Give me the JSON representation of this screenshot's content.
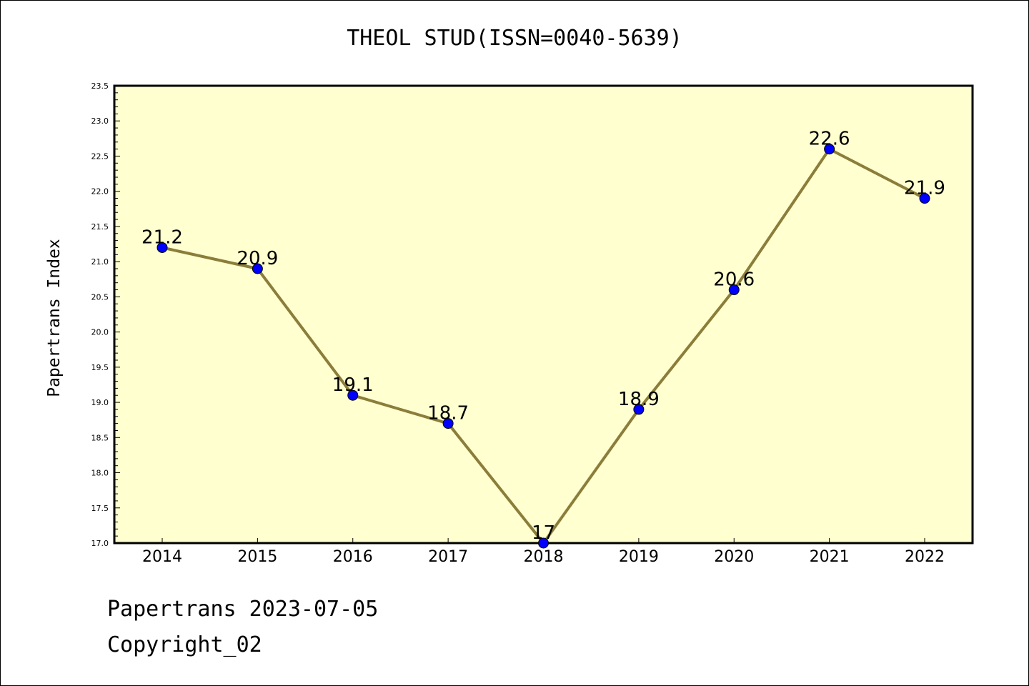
{
  "chart_data": {
    "type": "line",
    "title": "THEOL STUD(ISSN=0040-5639)",
    "ylabel": "Papertrans Index",
    "xlabel": "",
    "categories": [
      "2014",
      "2015",
      "2016",
      "2017",
      "2018",
      "2019",
      "2020",
      "2021",
      "2022"
    ],
    "series": [
      {
        "values": [
          21.2,
          20.9,
          19.1,
          18.7,
          17.0,
          18.9,
          20.6,
          22.6,
          21.9
        ]
      }
    ],
    "data_labels": [
      "21.2",
      "20.9",
      "19.1",
      "18.7",
      "17",
      "18.9",
      "20.6",
      "22.6",
      "21.9"
    ],
    "ylim": [
      17.0,
      23.5
    ],
    "yticks": [
      "17.0",
      "17.5",
      "18.0",
      "18.5",
      "19.0",
      "19.5",
      "20.0",
      "20.5",
      "21.0",
      "21.5",
      "22.0",
      "22.5",
      "23.0",
      "23.5"
    ],
    "grid": false,
    "legend": "none",
    "colors": {
      "plot_background": "#ffffd0",
      "line": "#8b7d3a",
      "marker": "#0000ff"
    }
  },
  "footer": {
    "line1": "Papertrans 2023-07-05",
    "line2": "Copyright_02"
  }
}
